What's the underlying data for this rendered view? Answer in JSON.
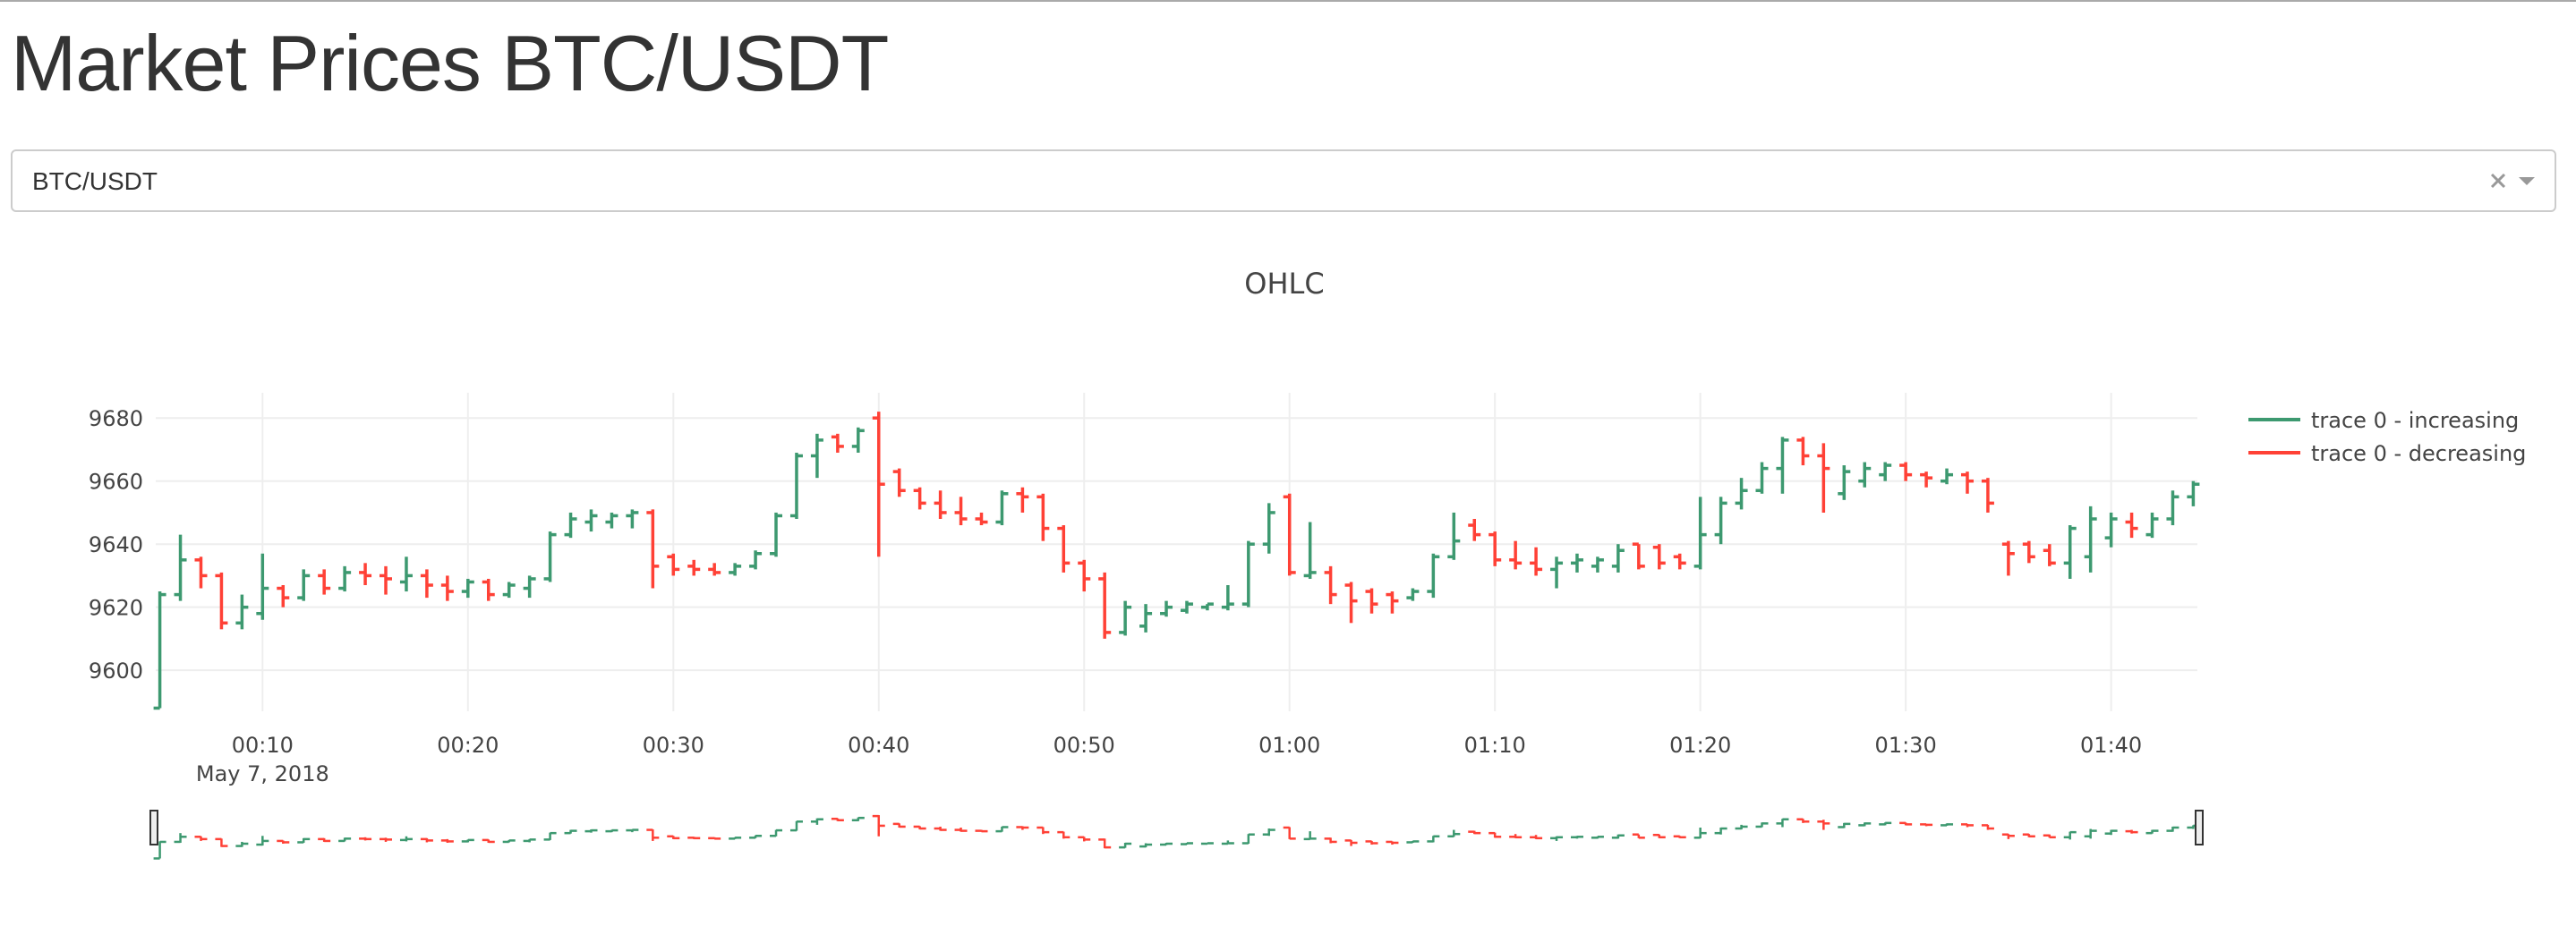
{
  "header": {
    "title": "Market Prices BTC/USDT"
  },
  "dropdown": {
    "value": "BTC/USDT"
  },
  "chart_data": {
    "type": "ohlc",
    "title": "OHLC",
    "x": [
      "2018-05-07 00:05",
      "2018-05-07 00:06",
      "2018-05-07 00:07",
      "2018-05-07 00:08",
      "2018-05-07 00:09",
      "2018-05-07 00:10",
      "2018-05-07 00:11",
      "2018-05-07 00:12",
      "2018-05-07 00:13",
      "2018-05-07 00:14",
      "2018-05-07 00:15",
      "2018-05-07 00:16",
      "2018-05-07 00:17",
      "2018-05-07 00:18",
      "2018-05-07 00:19",
      "2018-05-07 00:20",
      "2018-05-07 00:21",
      "2018-05-07 00:22",
      "2018-05-07 00:23",
      "2018-05-07 00:24",
      "2018-05-07 00:25",
      "2018-05-07 00:26",
      "2018-05-07 00:27",
      "2018-05-07 00:28",
      "2018-05-07 00:29",
      "2018-05-07 00:30",
      "2018-05-07 00:31",
      "2018-05-07 00:32",
      "2018-05-07 00:33",
      "2018-05-07 00:34",
      "2018-05-07 00:35",
      "2018-05-07 00:36",
      "2018-05-07 00:37",
      "2018-05-07 00:38",
      "2018-05-07 00:39",
      "2018-05-07 00:40",
      "2018-05-07 00:41",
      "2018-05-07 00:42",
      "2018-05-07 00:43",
      "2018-05-07 00:44",
      "2018-05-07 00:45",
      "2018-05-07 00:46",
      "2018-05-07 00:47",
      "2018-05-07 00:48",
      "2018-05-07 00:49",
      "2018-05-07 00:50",
      "2018-05-07 00:51",
      "2018-05-07 00:52",
      "2018-05-07 00:53",
      "2018-05-07 00:54",
      "2018-05-07 00:55",
      "2018-05-07 00:56",
      "2018-05-07 00:57",
      "2018-05-07 00:58",
      "2018-05-07 00:59",
      "2018-05-07 01:00",
      "2018-05-07 01:01",
      "2018-05-07 01:02",
      "2018-05-07 01:03",
      "2018-05-07 01:04",
      "2018-05-07 01:05",
      "2018-05-07 01:06",
      "2018-05-07 01:07",
      "2018-05-07 01:08",
      "2018-05-07 01:09",
      "2018-05-07 01:10",
      "2018-05-07 01:11",
      "2018-05-07 01:12",
      "2018-05-07 01:13",
      "2018-05-07 01:14",
      "2018-05-07 01:15",
      "2018-05-07 01:16",
      "2018-05-07 01:17",
      "2018-05-07 01:18",
      "2018-05-07 01:19",
      "2018-05-07 01:20",
      "2018-05-07 01:21",
      "2018-05-07 01:22",
      "2018-05-07 01:23",
      "2018-05-07 01:24",
      "2018-05-07 01:25",
      "2018-05-07 01:26",
      "2018-05-07 01:27",
      "2018-05-07 01:28",
      "2018-05-07 01:29",
      "2018-05-07 01:30",
      "2018-05-07 01:31",
      "2018-05-07 01:32",
      "2018-05-07 01:33",
      "2018-05-07 01:34",
      "2018-05-07 01:35",
      "2018-05-07 01:36",
      "2018-05-07 01:37",
      "2018-05-07 01:38",
      "2018-05-07 01:39",
      "2018-05-07 01:40",
      "2018-05-07 01:41",
      "2018-05-07 01:42",
      "2018-05-07 01:43",
      "2018-05-07 01:44"
    ],
    "open": [
      9588,
      9624,
      9635,
      9630,
      9615,
      9618,
      9626,
      9623,
      9630,
      9626,
      9631,
      9630,
      9628,
      9630,
      9627,
      9625,
      9628,
      9624,
      9626,
      9629,
      9643,
      9647,
      9647,
      9649,
      9650,
      9636,
      9633,
      9632,
      9631,
      9633,
      9637,
      9649,
      9668,
      9674,
      9671,
      9680,
      9663,
      9657,
      9653,
      9650,
      9648,
      9647,
      9656,
      9655,
      9645,
      9634,
      9629,
      9612,
      9614,
      9618,
      9619,
      9620,
      9620,
      9621,
      9640,
      9655,
      9630,
      9631,
      9627,
      9625,
      9624,
      9623,
      9625,
      9636,
      9646,
      9643,
      9635,
      9634,
      9632,
      9634,
      9633,
      9633,
      9640,
      9639,
      9636,
      9633,
      9643,
      9653,
      9657,
      9664,
      9673,
      9668,
      9656,
      9660,
      9662,
      9665,
      9662,
      9660,
      9662,
      9660,
      9640,
      9640,
      9638,
      9634,
      9636,
      9642,
      9647,
      9643,
      9648,
      9655
    ],
    "high": [
      9625,
      9643,
      9636,
      9631,
      9624,
      9637,
      9627,
      9632,
      9632,
      9633,
      9634,
      9633,
      9636,
      9632,
      9630,
      9629,
      9629,
      9628,
      9630,
      9644,
      9650,
      9651,
      9650,
      9651,
      9651,
      9637,
      9635,
      9634,
      9634,
      9638,
      9650,
      9669,
      9675,
      9675,
      9677,
      9682,
      9664,
      9658,
      9657,
      9655,
      9650,
      9657,
      9658,
      9656,
      9646,
      9635,
      9631,
      9622,
      9621,
      9622,
      9622,
      9621,
      9627,
      9641,
      9653,
      9656,
      9647,
      9633,
      9628,
      9626,
      9625,
      9626,
      9637,
      9650,
      9648,
      9644,
      9641,
      9639,
      9636,
      9637,
      9636,
      9640,
      9640,
      9640,
      9637,
      9655,
      9655,
      9661,
      9666,
      9674,
      9674,
      9672,
      9665,
      9666,
      9666,
      9666,
      9663,
      9664,
      9663,
      9661,
      9641,
      9641,
      9640,
      9646,
      9652,
      9650,
      9650,
      9650,
      9657,
      9660
    ],
    "low": [
      9588,
      9622,
      9626,
      9613,
      9613,
      9616,
      9620,
      9622,
      9624,
      9625,
      9627,
      9624,
      9625,
      9623,
      9622,
      9623,
      9622,
      9623,
      9623,
      9628,
      9642,
      9644,
      9645,
      9645,
      9626,
      9630,
      9630,
      9630,
      9630,
      9632,
      9636,
      9648,
      9661,
      9669,
      9669,
      9636,
      9655,
      9651,
      9648,
      9646,
      9646,
      9646,
      9650,
      9641,
      9631,
      9625,
      9610,
      9611,
      9612,
      9617,
      9618,
      9619,
      9619,
      9620,
      9637,
      9630,
      9629,
      9621,
      9615,
      9618,
      9618,
      9622,
      9623,
      9635,
      9641,
      9633,
      9632,
      9630,
      9626,
      9631,
      9631,
      9631,
      9632,
      9632,
      9632,
      9632,
      9640,
      9651,
      9656,
      9656,
      9665,
      9650,
      9654,
      9658,
      9660,
      9660,
      9658,
      9659,
      9656,
      9650,
      9630,
      9634,
      9633,
      9629,
      9631,
      9639,
      9642,
      9642,
      9646,
      9652
    ],
    "close": [
      9624,
      9635,
      9630,
      9615,
      9620,
      9626,
      9623,
      9630,
      9626,
      9631,
      9630,
      9629,
      9630,
      9627,
      9625,
      9628,
      9624,
      9627,
      9629,
      9643,
      9648,
      9649,
      9649,
      9650,
      9633,
      9632,
      9632,
      9631,
      9633,
      9637,
      9649,
      9668,
      9673,
      9671,
      9676,
      9659,
      9657,
      9653,
      9650,
      9648,
      9647,
      9656,
      9655,
      9645,
      9634,
      9629,
      9612,
      9620,
      9618,
      9620,
      9621,
      9621,
      9621,
      9640,
      9650,
      9631,
      9631,
      9624,
      9622,
      9621,
      9622,
      9625,
      9636,
      9641,
      9643,
      9635,
      9634,
      9632,
      9634,
      9635,
      9635,
      9638,
      9633,
      9634,
      9634,
      9643,
      9653,
      9657,
      9664,
      9673,
      9668,
      9664,
      9663,
      9664,
      9665,
      9662,
      9661,
      9662,
      9660,
      9653,
      9637,
      9636,
      9634,
      9645,
      9648,
      9648,
      9645,
      9648,
      9655,
      9659
    ],
    "increasing": {
      "name": "trace 0 - increasing",
      "color": "#3d9970"
    },
    "decreasing": {
      "name": "trace 0 - decreasing",
      "color": "#ff4136"
    },
    "xlim": [
      "2018-05-07 00:04:48",
      "2018-05-07 01:44:12"
    ],
    "xticks": [
      {
        "value": "2018-05-07 00:10",
        "label": "00:10"
      },
      {
        "value": "2018-05-07 00:20",
        "label": "00:20"
      },
      {
        "value": "2018-05-07 00:30",
        "label": "00:30"
      },
      {
        "value": "2018-05-07 00:40",
        "label": "00:40"
      },
      {
        "value": "2018-05-07 00:50",
        "label": "00:50"
      },
      {
        "value": "2018-05-07 01:00",
        "label": "01:00"
      },
      {
        "value": "2018-05-07 01:10",
        "label": "01:10"
      },
      {
        "value": "2018-05-07 01:20",
        "label": "01:20"
      },
      {
        "value": "2018-05-07 01:30",
        "label": "01:30"
      },
      {
        "value": "2018-05-07 01:40",
        "label": "01:40"
      }
    ],
    "x_date_label": "May 7, 2018",
    "ylim": [
      9587,
      9688
    ],
    "yticks": [
      9600,
      9620,
      9640,
      9660,
      9680
    ],
    "grid": true,
    "legend": "top-right",
    "rangeslider": true
  }
}
